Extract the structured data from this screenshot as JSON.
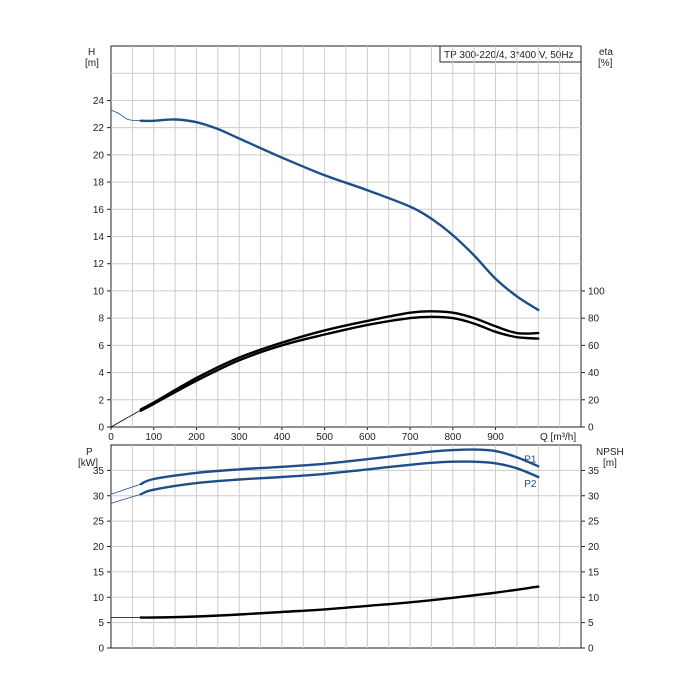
{
  "chart_data": [
    {
      "type": "line",
      "title": "TP 300-220/4, 3*400 V, 50Hz",
      "xlabel": "Q [m³/h]",
      "ylabel_left_name": "H",
      "ylabel_left_unit": "[m]",
      "ylabel_right_name": "eta",
      "ylabel_right_unit": "[%]",
      "xlim": [
        0,
        1100
      ],
      "ylim_left": [
        0,
        28
      ],
      "ylim_right": [
        0,
        280
      ],
      "x_ticks": [
        "0",
        "100",
        "200",
        "300",
        "400",
        "500",
        "600",
        "700",
        "800",
        "900"
      ],
      "y_left_ticks": [
        "0",
        "2",
        "4",
        "6",
        "8",
        "10",
        "12",
        "14",
        "16",
        "18",
        "20",
        "22",
        "24"
      ],
      "y_right_ticks": [
        "0",
        "20",
        "40",
        "60",
        "80",
        "100"
      ],
      "grid": true,
      "series": [
        {
          "color": "#1f4e8c",
          "axis": "left",
          "x": [
            70,
            100,
            150,
            200,
            250,
            300,
            400,
            500,
            600,
            700,
            750,
            800,
            850,
            900,
            950,
            1000
          ],
          "y": [
            22.5,
            22.5,
            22.6,
            22.4,
            21.9,
            21.2,
            19.8,
            18.5,
            17.4,
            16.2,
            15.3,
            14.1,
            12.6,
            10.9,
            9.6,
            8.6
          ]
        },
        {
          "color": "#1f4e8c",
          "axis": "left",
          "style": "thin-extension",
          "x": [
            0,
            20,
            40,
            70
          ],
          "y": [
            23.3,
            23.0,
            22.6,
            22.5
          ]
        },
        {
          "color": "#000000",
          "axis": "right",
          "x": [
            70,
            100,
            200,
            300,
            400,
            500,
            600,
            700,
            750,
            800,
            850,
            900,
            950,
            1000
          ],
          "y": [
            13,
            18,
            36,
            51,
            62,
            71,
            78,
            84,
            85,
            84,
            80,
            74,
            69,
            69
          ]
        },
        {
          "color": "#000000",
          "axis": "right",
          "x": [
            70,
            100,
            200,
            300,
            400,
            500,
            600,
            700,
            750,
            800,
            850,
            900,
            950,
            1000
          ],
          "y": [
            12,
            17,
            34,
            49,
            60,
            68,
            75,
            80,
            81,
            80,
            76,
            70,
            66,
            65
          ]
        },
        {
          "color": "#000000",
          "axis": "right",
          "style": "thin-extension",
          "x": [
            0,
            70
          ],
          "y": [
            0,
            12.5
          ]
        }
      ]
    },
    {
      "type": "line",
      "xlabel": "",
      "ylabel_left_name": "P",
      "ylabel_left_unit": "[kW]",
      "ylabel_right_name": "NPSH",
      "ylabel_right_unit": "[m]",
      "xlim": [
        0,
        1100
      ],
      "ylim_left": [
        0,
        40
      ],
      "ylim_right": [
        0,
        40
      ],
      "y_left_ticks": [
        "0",
        "5",
        "10",
        "15",
        "20",
        "25",
        "30",
        "35"
      ],
      "y_right_ticks": [
        "0",
        "5",
        "10",
        "15",
        "20",
        "25",
        "30",
        "35"
      ],
      "grid": true,
      "series": [
        {
          "name": "P1",
          "color": "#1f4e8c",
          "axis": "left",
          "x": [
            70,
            100,
            200,
            300,
            400,
            500,
            600,
            700,
            750,
            800,
            850,
            900,
            950,
            1000
          ],
          "y": [
            32.3,
            33.3,
            34.5,
            35.2,
            35.7,
            36.3,
            37.2,
            38.2,
            38.7,
            39.0,
            39.1,
            38.8,
            37.6,
            35.8
          ]
        },
        {
          "name": "P2",
          "color": "#1f4e8c",
          "axis": "left",
          "x": [
            70,
            100,
            200,
            300,
            400,
            500,
            600,
            700,
            750,
            800,
            850,
            900,
            950,
            1000
          ],
          "y": [
            30.3,
            31.2,
            32.5,
            33.2,
            33.7,
            34.3,
            35.2,
            36.1,
            36.5,
            36.7,
            36.7,
            36.4,
            35.4,
            33.7
          ]
        },
        {
          "color": "#1f4e8c",
          "axis": "left",
          "style": "thin-extension",
          "x": [
            0,
            70
          ],
          "y": [
            30.3,
            32.3
          ]
        },
        {
          "color": "#1f4e8c",
          "axis": "left",
          "style": "thin-extension",
          "x": [
            0,
            70
          ],
          "y": [
            28.5,
            30.3
          ]
        },
        {
          "color": "#000000",
          "axis": "right",
          "x": [
            70,
            100,
            200,
            300,
            400,
            500,
            600,
            700,
            800,
            900,
            1000
          ],
          "y": [
            6.0,
            6.0,
            6.2,
            6.6,
            7.1,
            7.6,
            8.3,
            9.0,
            9.9,
            10.9,
            12.1
          ]
        },
        {
          "color": "#000000",
          "axis": "right",
          "style": "thin-extension",
          "x": [
            0,
            70
          ],
          "y": [
            6.0,
            6.0
          ]
        }
      ]
    }
  ]
}
